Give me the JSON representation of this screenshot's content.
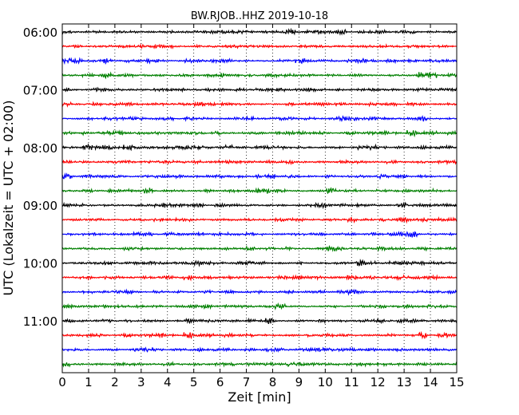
{
  "chart_data": {
    "type": "line",
    "subtype": "helicorder",
    "title": "BW.RJOB..HHZ 2019-10-18",
    "xlabel": "Zeit  [min]",
    "ylabel": "UTC (Lokalzeit = UTC + 02:00)",
    "xlim": [
      0,
      15
    ],
    "x_ticks": [
      0,
      1,
      2,
      3,
      4,
      5,
      6,
      7,
      8,
      9,
      10,
      11,
      12,
      13,
      14,
      15
    ],
    "x_tick_labels": [
      "0",
      "1",
      "2",
      "3",
      "4",
      "5",
      "6",
      "7",
      "8",
      "9",
      "10",
      "11",
      "12",
      "13",
      "14",
      "15"
    ],
    "y_tick_labels": [
      "06:00",
      "07:00",
      "08:00",
      "09:00",
      "10:00",
      "11:00"
    ],
    "grid": "vertical dotted lines at each minute",
    "line_minutes": 15,
    "line_colors": [
      "#000000",
      "#ff0000",
      "#0000ff",
      "#008000"
    ],
    "series": [
      {
        "start": "06:00",
        "color": "#000000"
      },
      {
        "start": "06:15",
        "color": "#ff0000"
      },
      {
        "start": "06:30",
        "color": "#0000ff"
      },
      {
        "start": "06:45",
        "color": "#008000"
      },
      {
        "start": "07:00",
        "color": "#000000"
      },
      {
        "start": "07:15",
        "color": "#ff0000"
      },
      {
        "start": "07:30",
        "color": "#0000ff"
      },
      {
        "start": "07:45",
        "color": "#008000"
      },
      {
        "start": "08:00",
        "color": "#000000"
      },
      {
        "start": "08:15",
        "color": "#ff0000"
      },
      {
        "start": "08:30",
        "color": "#0000ff"
      },
      {
        "start": "08:45",
        "color": "#008000"
      },
      {
        "start": "09:00",
        "color": "#000000"
      },
      {
        "start": "09:15",
        "color": "#ff0000"
      },
      {
        "start": "09:30",
        "color": "#0000ff"
      },
      {
        "start": "09:45",
        "color": "#008000"
      },
      {
        "start": "10:00",
        "color": "#000000"
      },
      {
        "start": "10:15",
        "color": "#ff0000"
      },
      {
        "start": "10:30",
        "color": "#0000ff"
      },
      {
        "start": "10:45",
        "color": "#008000"
      },
      {
        "start": "11:00",
        "color": "#000000"
      },
      {
        "start": "11:15",
        "color": "#ff0000"
      },
      {
        "start": "11:30",
        "color": "#0000ff"
      },
      {
        "start": "11:45",
        "color": "#008000"
      }
    ]
  }
}
